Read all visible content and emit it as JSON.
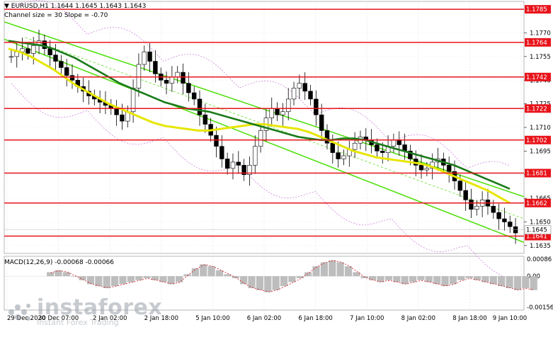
{
  "header": {
    "symbol_line": "▼  EURUSD,H1  1.1644 1.1645 1.1643 1.1643",
    "channel_line": "Channel size = 30 Slope = -0.70"
  },
  "macd": {
    "label": "MACD(12,26,9) -0.00068 -0.00066",
    "ticks": [
      "0.00086",
      "0.00",
      "-0.00156"
    ]
  },
  "watermark": {
    "brand": "instaforex",
    "tagline": "Instant Forex Trading"
  },
  "chart_data": {
    "type": "candlestick",
    "symbol": "EURUSD",
    "timeframe": "H1",
    "ohlc_last": {
      "open": 1.1644,
      "high": 1.1645,
      "low": 1.1643,
      "close": 1.1643
    },
    "ylim": [
      1.163,
      1.179
    ],
    "y_ticks": [
      "1.1770",
      "1.1755",
      "1.1740",
      "1.1725",
      "1.1710",
      "1.1695",
      "1.1680",
      "1.1665",
      "1.1650",
      "1.1635"
    ],
    "x_ticks": [
      "29 Dec 2020",
      "30 Dec 07:00",
      "2 Jan 02:00",
      "2 Jan 18:00",
      "5 Jan 10:00",
      "6 Jan 02:00",
      "6 Jan 18:00",
      "7 Jan 10:00",
      "8 Jan 02:00",
      "8 Jan 18:00",
      "9 Jan 10:00"
    ],
    "levels": [
      {
        "label": "1.1785",
        "value": 1.1785
      },
      {
        "label": "1.1764",
        "value": 1.1764
      },
      {
        "label": "1.1742",
        "value": 1.1742
      },
      {
        "label": "1.1722",
        "value": 1.1722
      },
      {
        "label": "1.1702",
        "value": 1.1702
      },
      {
        "label": "1.1681",
        "value": 1.1681
      },
      {
        "label": "1.1662",
        "value": 1.1662
      },
      {
        "label": "1.1641",
        "value": 1.1641
      }
    ],
    "current_price_tag": "1.1645",
    "closes": [
      1.1755,
      1.1758,
      1.176,
      1.1757,
      1.1762,
      1.1765,
      1.176,
      1.1756,
      1.1752,
      1.1748,
      1.1743,
      1.174,
      1.1736,
      1.1733,
      1.173,
      1.1728,
      1.1726,
      1.1724,
      1.1722,
      1.1718,
      1.1714,
      1.172,
      1.1735,
      1.175,
      1.1758,
      1.1752,
      1.1744,
      1.174,
      1.1738,
      1.1742,
      1.1745,
      1.1738,
      1.1732,
      1.1728,
      1.1718,
      1.1712,
      1.1705,
      1.1698,
      1.169,
      1.1684,
      1.1688,
      1.1686,
      1.168,
      1.1686,
      1.1698,
      1.1708,
      1.1716,
      1.1722,
      1.1718,
      1.172,
      1.1728,
      1.1735,
      1.1738,
      1.1733,
      1.1728,
      1.1718,
      1.1708,
      1.17,
      1.1694,
      1.169,
      1.1692,
      1.1696,
      1.17,
      1.1704,
      1.1702,
      1.1699,
      1.1695,
      1.1694,
      1.1698,
      1.1702,
      1.1699,
      1.1695,
      1.169,
      1.1686,
      1.1683,
      1.1684,
      1.1688,
      1.169,
      1.1686,
      1.1682,
      1.1676,
      1.167,
      1.1664,
      1.1658,
      1.166,
      1.1664,
      1.166,
      1.1656,
      1.1652,
      1.165,
      1.1647,
      1.1643
    ],
    "ma_fast_name": "",
    "ma_fast": [
      1.176,
      1.1758,
      1.1755,
      1.1751,
      1.1747,
      1.1742,
      1.1737,
      1.1733,
      1.1729,
      1.1725,
      1.1722,
      1.1719,
      1.1716,
      1.1713,
      1.1711,
      1.171,
      1.1709,
      1.1708,
      1.1708,
      1.1709,
      1.171,
      1.1711,
      1.1712,
      1.1712,
      1.1711,
      1.171,
      1.1709,
      1.1707,
      1.1704,
      1.1701,
      1.1698,
      1.1695,
      1.1693,
      1.1691,
      1.169,
      1.1689,
      1.1688,
      1.1687,
      1.1685,
      1.1682,
      1.1679,
      1.1676,
      1.1673,
      1.167,
      1.1666,
      1.1662
    ],
    "ma_slow": [
      1.1765,
      1.1764,
      1.1763,
      1.1762,
      1.176,
      1.1757,
      1.1754,
      1.175,
      1.1746,
      1.1742,
      1.1738,
      1.1735,
      1.1732,
      1.1729,
      1.1726,
      1.1724,
      1.1722,
      1.1721,
      1.172,
      1.1718,
      1.1716,
      1.1714,
      1.1712,
      1.171,
      1.1708,
      1.1706,
      1.1704,
      1.1703,
      1.1702,
      1.1702,
      1.1703,
      1.1703,
      1.1702,
      1.17,
      1.1698,
      1.1696,
      1.1694,
      1.1692,
      1.169,
      1.1688,
      1.1686,
      1.1683,
      1.168,
      1.1677,
      1.1674,
      1.1671
    ],
    "macd_hist": [
      0.0002,
      0.0003,
      0.0002,
      0.0,
      -0.0002,
      -0.0004,
      -0.0005,
      -0.0006,
      -0.0005,
      -0.0004,
      -0.0003,
      -0.0002,
      -0.0001,
      -0.0002,
      -0.0003,
      -0.0004,
      -0.0003,
      0.0001,
      0.0004,
      0.0006,
      0.0005,
      0.0003,
      0.0001,
      -0.0001,
      -0.0004,
      -0.0006,
      -0.0007,
      -0.0008,
      -0.0007,
      -0.0005,
      -0.0003,
      -0.0001,
      0.0002,
      0.0005,
      0.0007,
      0.0008,
      0.0007,
      0.0005,
      0.0002,
      -0.0001,
      -0.0002,
      -0.0003,
      -0.0002,
      -0.0003,
      -0.0004,
      -0.0003,
      -0.0002,
      -0.0003,
      -0.0004,
      -0.0005,
      -0.0004,
      -0.0002,
      -0.0001,
      -0.0002,
      -0.0003,
      -0.0004,
      -0.0005,
      -0.0006,
      -0.0007,
      -0.0006,
      -0.0007
    ],
    "colors": {
      "bull_candle": "#ffffff",
      "bear_candle": "#000000",
      "level_line": "#e8141b",
      "channel": "#55e014",
      "ma_fast": "#e6e600",
      "ma_slow": "#1a7a1a",
      "bands": "#c870d8",
      "macd_hist": "#bdbdbd",
      "macd_signal": "#d8141b"
    }
  }
}
